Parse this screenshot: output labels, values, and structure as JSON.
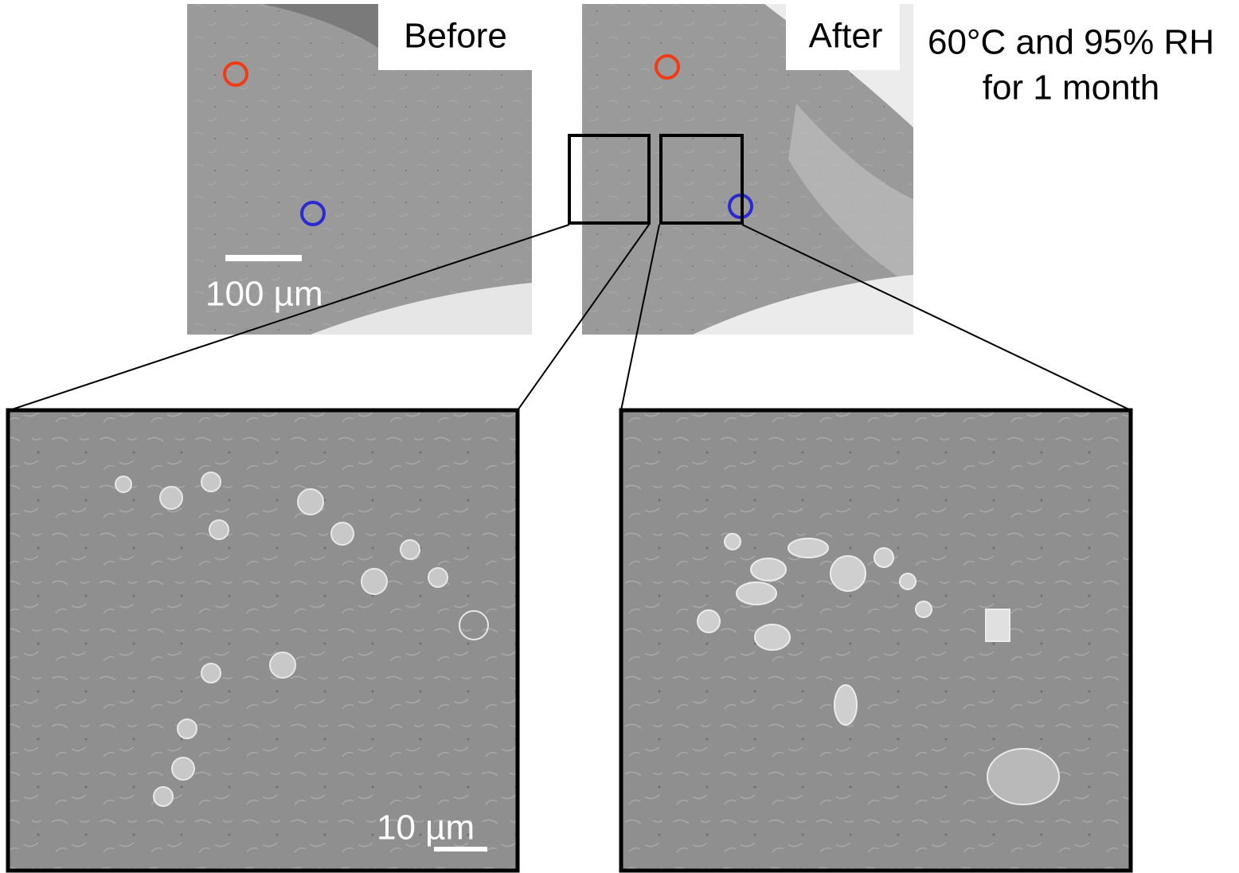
{
  "panels": {
    "before": {
      "label": "Before",
      "scale_bar": "100 µm"
    },
    "after": {
      "label": "After"
    },
    "condition": {
      "line1": "60°C and 95% RH",
      "line2": "for 1 month"
    },
    "zoom_left": {
      "scale_bar": "10 µm"
    }
  }
}
